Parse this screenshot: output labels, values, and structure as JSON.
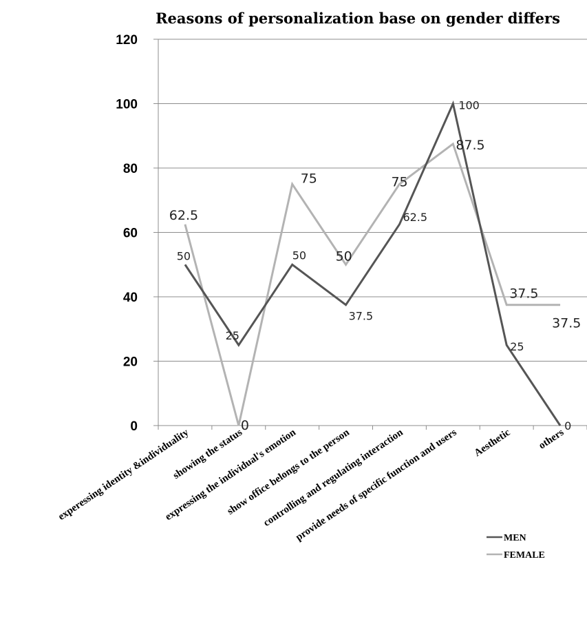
{
  "chart_data": {
    "type": "line",
    "title": "Reasons of personalization base on gender differs",
    "xlabel": "",
    "ylabel": "",
    "ylim": [
      0,
      120
    ],
    "yticks": [
      0,
      20,
      40,
      60,
      80,
      100,
      120
    ],
    "grid": "horizontal",
    "legend": "bottom-right",
    "categories": [
      "experessing identity &individuality",
      "showing the status",
      "expressing the individual's emotion",
      "show office belongs to the person",
      "controlling and regulating interaction",
      "provide needs of specific function and users",
      "Aesthetic",
      "others"
    ],
    "series": [
      {
        "name": "MEN",
        "color": "#555555",
        "values": [
          50,
          25,
          50,
          37.5,
          62.5,
          100,
          25,
          0
        ],
        "labels": [
          "50",
          "25",
          "50",
          "37.5",
          "62.5",
          "100",
          "25",
          "0"
        ]
      },
      {
        "name": "FEMALE",
        "color": "#b3b3b3",
        "values": [
          62.5,
          0,
          75,
          50,
          75,
          87.5,
          37.5,
          37.5
        ],
        "labels": [
          "62.5",
          "0",
          "75",
          "50",
          "75",
          "87.5",
          "37.5",
          "37.5"
        ]
      }
    ]
  }
}
